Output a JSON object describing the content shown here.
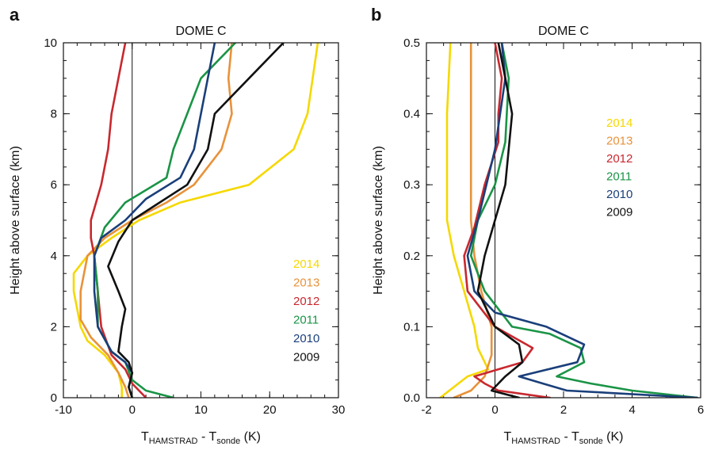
{
  "chart_data": [
    {
      "type": "line",
      "panel_label": "a",
      "title": "DOME C",
      "xlabel_main": "T",
      "xlabel_sub1": "HAMSTRAD",
      "xlabel_mid": " - T",
      "xlabel_sub2": "sonde",
      "xlabel_unit": " (K)",
      "ylabel": "Height above surface (km)",
      "xlim": [
        -10,
        30
      ],
      "ylim": [
        0,
        10
      ],
      "xticks": [
        -10,
        0,
        10,
        20,
        30
      ],
      "yticks": [
        0,
        2,
        4,
        6,
        8,
        10
      ],
      "xtick_labels": [
        "-10",
        "0",
        "10",
        "20",
        "30"
      ],
      "ytick_labels": [
        "0",
        "2",
        "4",
        "6",
        "8",
        "10"
      ],
      "legend_position": "bottom-right",
      "series": [
        {
          "name": "2014",
          "color": "#f5d800",
          "points": [
            [
              -1.5,
              0
            ],
            [
              -1.5,
              0.3
            ],
            [
              -2,
              0.7
            ],
            [
              -4,
              1.2
            ],
            [
              -6.5,
              1.6
            ],
            [
              -7.5,
              2
            ],
            [
              -8.5,
              3
            ],
            [
              -8.5,
              3.5
            ],
            [
              -6.5,
              4
            ],
            [
              -3,
              4.5
            ],
            [
              1,
              5
            ],
            [
              7,
              5.5
            ],
            [
              17,
              6
            ],
            [
              23.5,
              7
            ],
            [
              25.5,
              8
            ],
            [
              27,
              10
            ]
          ]
        },
        {
          "name": "2013",
          "color": "#e8923a",
          "points": [
            [
              -0.5,
              0
            ],
            [
              -1,
              0.3
            ],
            [
              -2,
              0.7
            ],
            [
              -3.5,
              1.2
            ],
            [
              -6,
              1.7
            ],
            [
              -7.5,
              2.2
            ],
            [
              -7.5,
              3
            ],
            [
              -6.5,
              4
            ],
            [
              -4,
              4.5
            ],
            [
              0,
              5
            ],
            [
              5,
              5.5
            ],
            [
              9,
              6
            ],
            [
              13,
              7
            ],
            [
              14.5,
              8
            ],
            [
              14,
              9
            ],
            [
              14.5,
              10
            ]
          ]
        },
        {
          "name": "2012",
          "color": "#c8282e",
          "points": [
            [
              2,
              0
            ],
            [
              1,
              0.2
            ],
            [
              0,
              0.4
            ],
            [
              -1,
              0.8
            ],
            [
              -3,
              1.2
            ],
            [
              -4.5,
              2
            ],
            [
              -5,
              3
            ],
            [
              -5.5,
              4
            ],
            [
              -6,
              4.5
            ],
            [
              -6,
              5
            ],
            [
              -4.5,
              6
            ],
            [
              -3.5,
              7
            ],
            [
              -3,
              8
            ],
            [
              -2,
              9
            ],
            [
              -1,
              10
            ]
          ]
        },
        {
          "name": "2011",
          "color": "#1a9446",
          "points": [
            [
              6,
              0
            ],
            [
              2,
              0.2
            ],
            [
              0,
              0.5
            ],
            [
              -1,
              1
            ],
            [
              -3,
              1.3
            ],
            [
              -5,
              2
            ],
            [
              -5,
              3
            ],
            [
              -5.5,
              4
            ],
            [
              -4,
              4.8
            ],
            [
              -1,
              5.5
            ],
            [
              5,
              6.2
            ],
            [
              6,
              7
            ],
            [
              8,
              8
            ],
            [
              10,
              9
            ],
            [
              15,
              10
            ]
          ]
        },
        {
          "name": "2010",
          "color": "#1a3f7a",
          "points": [
            [
              0,
              0
            ],
            [
              -0.5,
              0.3
            ],
            [
              0,
              0.7
            ],
            [
              -1,
              1
            ],
            [
              -3,
              1.3
            ],
            [
              -5,
              2
            ],
            [
              -5.5,
              3
            ],
            [
              -5.5,
              4
            ],
            [
              -4.5,
              4.5
            ],
            [
              -1,
              5
            ],
            [
              2,
              5.6
            ],
            [
              7,
              6.2
            ],
            [
              9,
              7
            ],
            [
              11,
              9
            ],
            [
              12,
              10
            ]
          ]
        },
        {
          "name": "2009",
          "color": "#111111",
          "points": [
            [
              0,
              0
            ],
            [
              -0.5,
              0.3
            ],
            [
              0,
              0.7
            ],
            [
              -0.5,
              1
            ],
            [
              -2,
              1.3
            ],
            [
              -1.5,
              2
            ],
            [
              -1,
              2.5
            ],
            [
              -2,
              3
            ],
            [
              -3.5,
              3.7
            ],
            [
              -2,
              4.4
            ],
            [
              0,
              5
            ],
            [
              4,
              5.5
            ],
            [
              8,
              6
            ],
            [
              11,
              7
            ],
            [
              12,
              8
            ],
            [
              17,
              9
            ],
            [
              22,
              10
            ]
          ]
        }
      ]
    },
    {
      "type": "line",
      "panel_label": "b",
      "title": "DOME C",
      "xlabel_main": "T",
      "xlabel_sub1": "HAMSTRAD",
      "xlabel_mid": " - T",
      "xlabel_sub2": "sonde",
      "xlabel_unit": " (K)",
      "ylabel": "Height above surface (km)",
      "xlim": [
        -2,
        6
      ],
      "ylim": [
        0,
        0.5
      ],
      "xticks": [
        -2,
        0,
        2,
        4,
        6
      ],
      "yticks": [
        0,
        0.1,
        0.2,
        0.3,
        0.4,
        0.5
      ],
      "xtick_labels": [
        "-2",
        "0",
        "2",
        "4",
        "6"
      ],
      "ytick_labels": [
        "0.0",
        "0.1",
        "0.2",
        "0.3",
        "0.4",
        "0.5"
      ],
      "legend_position": "top-right",
      "series": [
        {
          "name": "2014",
          "color": "#f5d800",
          "points": [
            [
              -1.6,
              0
            ],
            [
              -0.8,
              0.03
            ],
            [
              -0.2,
              0.04
            ],
            [
              -0.5,
              0.07
            ],
            [
              -0.6,
              0.1
            ],
            [
              -0.9,
              0.15
            ],
            [
              -1.2,
              0.2
            ],
            [
              -1.4,
              0.25
            ],
            [
              -1.4,
              0.3
            ],
            [
              -1.4,
              0.4
            ],
            [
              -1.3,
              0.5
            ]
          ]
        },
        {
          "name": "2013",
          "color": "#e8923a",
          "points": [
            [
              -1.2,
              0
            ],
            [
              -0.7,
              0.01
            ],
            [
              -0.3,
              0.03
            ],
            [
              -0.1,
              0.06
            ],
            [
              -0.1,
              0.1
            ],
            [
              -0.4,
              0.15
            ],
            [
              -0.6,
              0.2
            ],
            [
              -0.7,
              0.25
            ],
            [
              -0.7,
              0.3
            ],
            [
              -0.7,
              0.4
            ],
            [
              -0.7,
              0.5
            ]
          ]
        },
        {
          "name": "2012",
          "color": "#c8282e",
          "points": [
            [
              1.6,
              0
            ],
            [
              0.1,
              0.01
            ],
            [
              -0.3,
              0.02
            ],
            [
              -0.6,
              0.03
            ],
            [
              0.8,
              0.05
            ],
            [
              1.1,
              0.07
            ],
            [
              0,
              0.1
            ],
            [
              -0.8,
              0.15
            ],
            [
              -0.9,
              0.2
            ],
            [
              -0.6,
              0.24
            ],
            [
              -0.3,
              0.3
            ],
            [
              0.1,
              0.36
            ],
            [
              0.1,
              0.4
            ],
            [
              0.2,
              0.45
            ],
            [
              0,
              0.5
            ]
          ]
        },
        {
          "name": "2011",
          "color": "#1a9446",
          "points": [
            [
              5.9,
              0
            ],
            [
              4,
              0.01
            ],
            [
              2.8,
              0.02
            ],
            [
              1.8,
              0.03
            ],
            [
              2.6,
              0.05
            ],
            [
              2.5,
              0.07
            ],
            [
              1.6,
              0.09
            ],
            [
              0.5,
              0.1
            ],
            [
              -0.3,
              0.15
            ],
            [
              -0.7,
              0.2
            ],
            [
              -0.5,
              0.25
            ],
            [
              0,
              0.3
            ],
            [
              0.3,
              0.36
            ],
            [
              0.4,
              0.45
            ],
            [
              0.2,
              0.5
            ]
          ]
        },
        {
          "name": "2010",
          "color": "#1a3f7a",
          "points": [
            [
              5.9,
              0
            ],
            [
              2.1,
              0.01
            ],
            [
              1.4,
              0.02
            ],
            [
              0.7,
              0.03
            ],
            [
              2.4,
              0.05
            ],
            [
              2.6,
              0.075
            ],
            [
              1.5,
              0.1
            ],
            [
              0,
              0.12
            ],
            [
              -0.6,
              0.15
            ],
            [
              -0.8,
              0.2
            ],
            [
              -0.5,
              0.25
            ],
            [
              0,
              0.35
            ],
            [
              0.3,
              0.45
            ],
            [
              0.2,
              0.5
            ]
          ]
        },
        {
          "name": "2009",
          "color": "#111111",
          "points": [
            [
              0.7,
              0
            ],
            [
              -0.1,
              0.01
            ],
            [
              0.3,
              0.03
            ],
            [
              0.8,
              0.05
            ],
            [
              0.7,
              0.075
            ],
            [
              0,
              0.1
            ],
            [
              -0.5,
              0.15
            ],
            [
              -0.3,
              0.2
            ],
            [
              0,
              0.25
            ],
            [
              0.3,
              0.3
            ],
            [
              0.5,
              0.4
            ],
            [
              0.3,
              0.45
            ],
            [
              0.1,
              0.5
            ]
          ]
        }
      ]
    }
  ]
}
